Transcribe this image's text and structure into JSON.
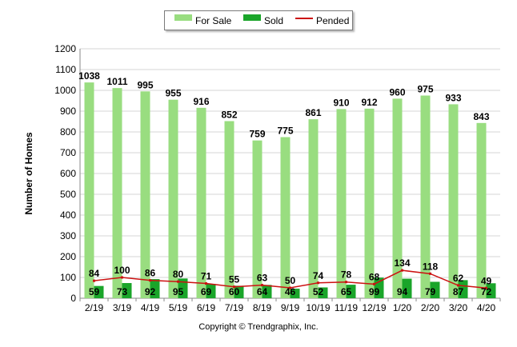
{
  "chart_data": {
    "type": "bar",
    "categories": [
      "2/19",
      "3/19",
      "4/19",
      "5/19",
      "6/19",
      "7/19",
      "8/19",
      "9/19",
      "10/19",
      "11/19",
      "12/19",
      "1/20",
      "2/20",
      "3/20",
      "4/20"
    ],
    "series": [
      {
        "name": "For Sale",
        "kind": "bar",
        "color": "#99dd80",
        "values": [
          1038,
          1011,
          995,
          955,
          916,
          852,
          759,
          775,
          861,
          910,
          912,
          960,
          975,
          933,
          843
        ]
      },
      {
        "name": "Sold",
        "kind": "bar",
        "color": "#1aa52a",
        "values": [
          59,
          73,
          92,
          95,
          69,
          60,
          64,
          46,
          52,
          65,
          99,
          94,
          79,
          87,
          72
        ]
      },
      {
        "name": "Pended",
        "kind": "line",
        "color": "#cc1111",
        "values": [
          84,
          100,
          86,
          80,
          71,
          55,
          63,
          50,
          74,
          78,
          68,
          134,
          118,
          62,
          49
        ]
      }
    ],
    "title": "",
    "xlabel": "",
    "ylabel": "Number of Homes",
    "ylim": [
      0,
      1200
    ],
    "yticks": [
      0,
      100,
      200,
      300,
      400,
      500,
      600,
      700,
      800,
      900,
      1000,
      1100,
      1200
    ],
    "grid": true,
    "legend_position": "top-center"
  },
  "footer": {
    "copyright": "Copyright © Trendgraphix, Inc."
  }
}
